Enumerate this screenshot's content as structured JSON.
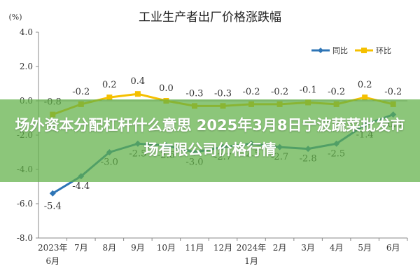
{
  "chart_data": {
    "type": "line",
    "title": "工业生产者出厂价格涨跌幅",
    "ylabel": "(%)",
    "ylim": [
      -8.0,
      4.0
    ],
    "yticks": [
      "4.0",
      "2.0",
      "0.0",
      "-2.0",
      "-4.0",
      "-6.0",
      "-8.0"
    ],
    "categories": [
      "2023年|6月",
      "7月",
      "8月",
      "9月",
      "10月",
      "11月",
      "12月",
      "2024年|1月",
      "2月",
      "3月",
      "4月",
      "5月",
      "6月"
    ],
    "series": [
      {
        "name": "同比",
        "color": "#2e75b6",
        "values": [
          -5.4,
          -4.4,
          -3.0,
          -2.5,
          -2.6,
          -3.0,
          -2.7,
          -2.5,
          -2.7,
          -2.8,
          -2.5,
          -1.4,
          -0.8
        ],
        "labels": [
          "-5.4",
          "-4.4",
          "-3.0",
          "-2.5",
          "-2.6",
          "-3.0",
          "-2.7",
          "-2.5",
          "-2.7",
          "-2.8",
          "-2.5",
          "-1.4",
          "-0.8"
        ]
      },
      {
        "name": "环比",
        "color": "#f5c000",
        "values": [
          -0.8,
          -0.2,
          0.2,
          0.4,
          0.0,
          -0.3,
          -0.3,
          -0.2,
          -0.2,
          -0.1,
          -0.2,
          0.2,
          -0.2
        ],
        "labels": [
          "-0.8",
          "-0.2",
          "0.2",
          "0.4",
          "0.0",
          "-0.3",
          "-0.3",
          "-0.2",
          "-0.2",
          "-0.1",
          "-0.2",
          "0.2",
          "-0.2"
        ]
      }
    ],
    "legend_position": "top-right",
    "grid": false
  },
  "overlay": {
    "text": "场外资本分配杠杆什么意思 2025年3月8日宁波蔬菜批发市场有限公司价格行情",
    "color": "#60b046"
  }
}
